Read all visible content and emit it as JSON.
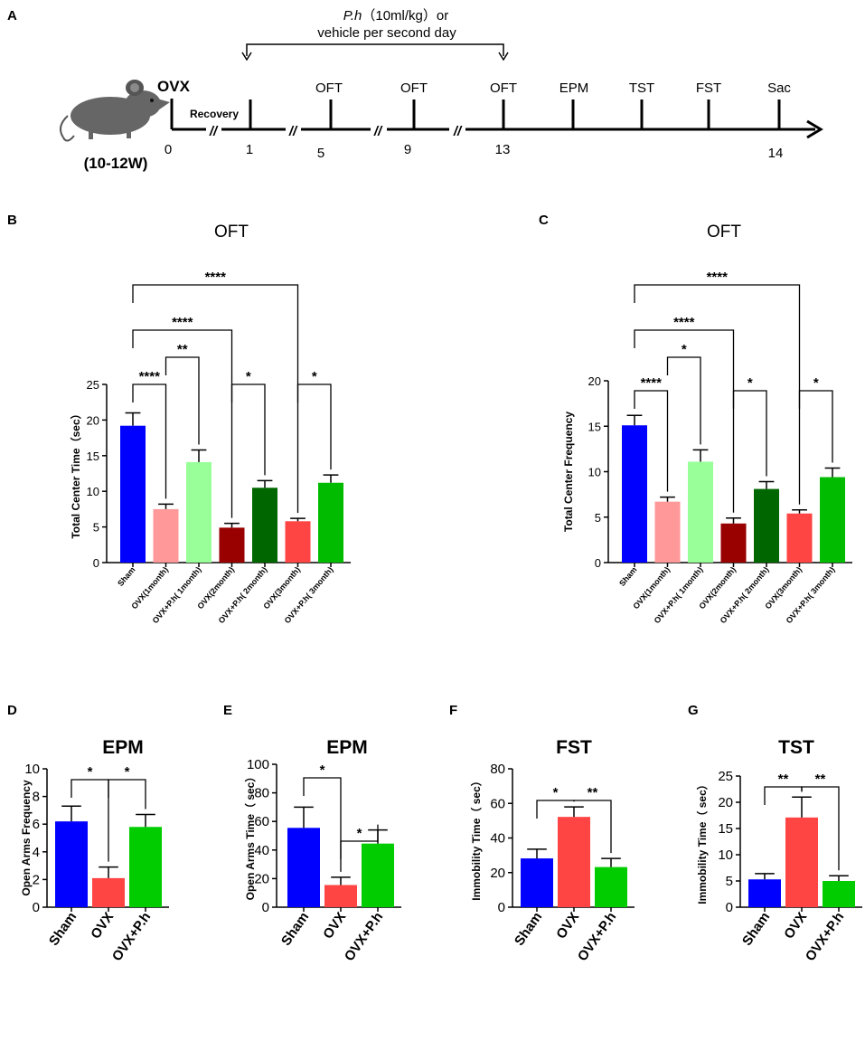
{
  "panel_labels": {
    "A": "A",
    "B": "B",
    "C": "C",
    "D": "D",
    "E": "E",
    "F": "F",
    "G": "G"
  },
  "timeline": {
    "treatment_drug": "P.h",
    "treatment_dose": "（10ml/kg）or",
    "treatment_line2": "vehicle per second day",
    "ovx": "OVX",
    "recovery": "Recovery",
    "age": "(10-12W)",
    "break_mark": "//",
    "days": [
      "0",
      "1",
      "5",
      "9",
      "13",
      "14"
    ],
    "tests": [
      "OFT",
      "OFT",
      "OFT",
      "EPM",
      "TST",
      "FST",
      "Sac"
    ]
  },
  "colors": {
    "sham": "#0000ff",
    "ovx_1m": "#ff9999",
    "ph_1m": "#99ff99",
    "ovx_2m": "#990000",
    "ph_2m": "#006600",
    "ovx_3m": "#ff4444",
    "ph_3m": "#00bb00",
    "ovx": "#ff4444",
    "ph": "#00cc00"
  },
  "chart_data": [
    {
      "id": "B",
      "type": "bar",
      "title": "OFT",
      "xlabel": "",
      "ylabel": "Total Center Time（sec）",
      "ylim": [
        0,
        25
      ],
      "yticks": [
        "0",
        "5",
        "10",
        "15",
        "20",
        "25"
      ],
      "categories": [
        "Sham",
        "OVX(1month)",
        "OVX+P.h( 1month)",
        "OVX(2month)",
        "OVX+P.h( 2month)",
        "OVX(3month)",
        "OVX+P.h( 3month)"
      ],
      "values": [
        19.2,
        7.5,
        14.1,
        4.9,
        10.5,
        5.8,
        11.2
      ],
      "errors": [
        1.8,
        0.7,
        1.7,
        0.6,
        1.0,
        0.4,
        1.1
      ],
      "colors": [
        "sham",
        "ovx_1m",
        "ph_1m",
        "ovx_2m",
        "ph_2m",
        "ovx_3m",
        "ph_3m"
      ],
      "significance": [
        {
          "from": 0,
          "to": 1,
          "label": "****"
        },
        {
          "from": 1,
          "to": 2,
          "label": "**"
        },
        {
          "from": 0,
          "to": 3,
          "label": "****"
        },
        {
          "from": 3,
          "to": 4,
          "label": "*"
        },
        {
          "from": 0,
          "to": 5,
          "label": "****"
        },
        {
          "from": 5,
          "to": 6,
          "label": "*"
        }
      ]
    },
    {
      "id": "C",
      "type": "bar",
      "title": "OFT",
      "xlabel": "",
      "ylabel": "Total Center Frequency",
      "ylim": [
        0,
        20
      ],
      "yticks": [
        "0",
        "5",
        "10",
        "15",
        "20"
      ],
      "categories": [
        "Sham",
        "OVX(1month)",
        "OVX+P.h( 1month)",
        "OVX(2month)",
        "OVX+P.h( 2month)",
        "OVX(3month)",
        "OVX+P.h( 3month)"
      ],
      "values": [
        15.1,
        6.7,
        11.1,
        4.3,
        8.1,
        5.4,
        9.4
      ],
      "errors": [
        1.1,
        0.5,
        1.3,
        0.6,
        0.8,
        0.4,
        1.0
      ],
      "colors": [
        "sham",
        "ovx_1m",
        "ph_1m",
        "ovx_2m",
        "ph_2m",
        "ovx_3m",
        "ph_3m"
      ],
      "significance": [
        {
          "from": 0,
          "to": 1,
          "label": "****"
        },
        {
          "from": 1,
          "to": 2,
          "label": "*"
        },
        {
          "from": 0,
          "to": 3,
          "label": "****"
        },
        {
          "from": 3,
          "to": 4,
          "label": "*"
        },
        {
          "from": 0,
          "to": 5,
          "label": "****"
        },
        {
          "from": 5,
          "to": 6,
          "label": "*"
        }
      ]
    },
    {
      "id": "D",
      "type": "bar",
      "title": "EPM",
      "xlabel": "",
      "ylabel": "Open Arms Frequency",
      "ylim": [
        0,
        10
      ],
      "yticks": [
        "0",
        "2",
        "4",
        "6",
        "8",
        "10"
      ],
      "categories": [
        "Sham",
        "OVX",
        "OVX+P.h"
      ],
      "values": [
        6.2,
        2.1,
        5.8
      ],
      "errors": [
        1.1,
        0.8,
        0.9
      ],
      "colors": [
        "sham",
        "ovx",
        "ph"
      ],
      "significance": [
        {
          "from": 0,
          "to": 1,
          "label": "*"
        },
        {
          "from": 1,
          "to": 2,
          "label": "*"
        }
      ]
    },
    {
      "id": "E",
      "type": "bar",
      "title": "EPM",
      "xlabel": "",
      "ylabel": "Open Arms Time（ sec）",
      "ylim": [
        0,
        100
      ],
      "yticks": [
        "0",
        "20",
        "40",
        "60",
        "80",
        "100"
      ],
      "categories": [
        "Sham",
        "OVX",
        "OVX+P.h"
      ],
      "values": [
        55.5,
        15.5,
        44.5
      ],
      "errors": [
        14.5,
        5.5,
        9.5
      ],
      "colors": [
        "sham",
        "ovx",
        "ph"
      ],
      "significance": [
        {
          "from": 0,
          "to": 1,
          "label": "*"
        },
        {
          "from": 1,
          "to": 2,
          "label": "*"
        }
      ]
    },
    {
      "id": "F",
      "type": "bar",
      "title": "FST",
      "xlabel": "",
      "ylabel": "Immobility Time（ sec）",
      "ylim": [
        0,
        80
      ],
      "yticks": [
        "0",
        "20",
        "40",
        "60",
        "80"
      ],
      "categories": [
        "Sham",
        "OVX",
        "OVX+P.h"
      ],
      "values": [
        28.2,
        52.2,
        23.2
      ],
      "errors": [
        5.3,
        5.8,
        5.0
      ],
      "colors": [
        "sham",
        "ovx",
        "ph"
      ],
      "significance": [
        {
          "from": 0,
          "to": 1,
          "label": "*"
        },
        {
          "from": 1,
          "to": 2,
          "label": "**"
        }
      ]
    },
    {
      "id": "G",
      "type": "bar",
      "title": "TST",
      "xlabel": "",
      "ylabel": "Immobility Time（ sec）",
      "ylim": [
        0,
        25
      ],
      "yticks": [
        "0",
        "5",
        "10",
        "15",
        "20",
        "25"
      ],
      "categories": [
        "Sham",
        "OVX",
        "OVX+P.h"
      ],
      "values": [
        5.3,
        17.1,
        5.0
      ],
      "errors": [
        1.1,
        3.9,
        1.0
      ],
      "colors": [
        "sham",
        "ovx",
        "ph"
      ],
      "significance": [
        {
          "from": 0,
          "to": 1,
          "label": "**"
        },
        {
          "from": 1,
          "to": 2,
          "label": "**"
        }
      ]
    }
  ]
}
